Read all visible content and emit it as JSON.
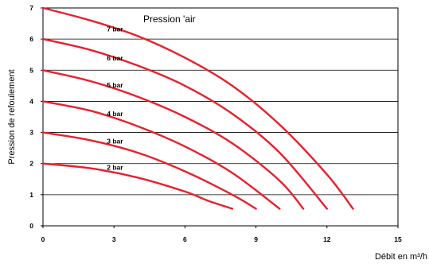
{
  "chart_data": {
    "type": "line",
    "title": "Pression 'air",
    "xlabel": "Débit en m³/h",
    "ylabel": "Pression de refoulement",
    "xlim": [
      0,
      15
    ],
    "ylim": [
      0,
      7
    ],
    "xticks": [
      "0",
      "3",
      "6",
      "9",
      "12",
      "15"
    ],
    "yticks": [
      "0",
      "1",
      "2",
      "3",
      "4",
      "5",
      "6",
      "7"
    ],
    "grid": true,
    "line_color": "#e8202c",
    "series": [
      {
        "name": "2 bar",
        "x": [
          0,
          2,
          4,
          6,
          7,
          8
        ],
        "y": [
          2.0,
          1.85,
          1.55,
          1.1,
          0.8,
          0.55
        ]
      },
      {
        "name": "3 bar",
        "x": [
          0,
          2,
          4,
          6,
          8,
          9
        ],
        "y": [
          3.0,
          2.75,
          2.35,
          1.75,
          1.0,
          0.55
        ]
      },
      {
        "name": "4 bar",
        "x": [
          0,
          2,
          4,
          6,
          8,
          10
        ],
        "y": [
          4.0,
          3.7,
          3.2,
          2.55,
          1.7,
          0.55
        ]
      },
      {
        "name": "5 bar",
        "x": [
          0,
          2,
          4,
          6,
          8,
          10,
          11
        ],
        "y": [
          5.0,
          4.65,
          4.15,
          3.5,
          2.65,
          1.45,
          0.55
        ]
      },
      {
        "name": "6 bar",
        "x": [
          0,
          2,
          4,
          6,
          8,
          10,
          12
        ],
        "y": [
          6.0,
          5.65,
          5.15,
          4.5,
          3.6,
          2.35,
          0.55
        ]
      },
      {
        "name": "7 bar",
        "x": [
          0,
          2,
          4,
          6,
          8,
          10,
          12,
          13.1
        ],
        "y": [
          7.0,
          6.6,
          6.1,
          5.4,
          4.5,
          3.25,
          1.65,
          0.55
        ]
      }
    ]
  }
}
